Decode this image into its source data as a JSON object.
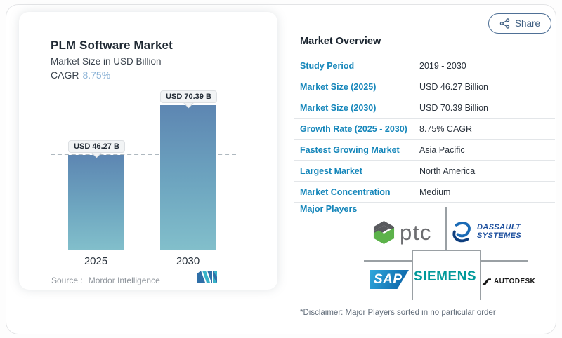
{
  "share": {
    "label": "Share"
  },
  "left_panel": {
    "title": "PLM Software Market",
    "subtitle": "Market Size in USD Billion",
    "cagr_label": "CAGR",
    "cagr_value": "8.75%",
    "source_label": "Source :",
    "source_value": "Mordor Intelligence"
  },
  "chart_data": {
    "type": "bar",
    "title": "PLM Software Market",
    "subtitle": "Market Size in USD Billion",
    "categories": [
      "2025",
      "2030"
    ],
    "values": [
      46.27,
      70.39
    ],
    "bar_labels": [
      "USD 46.27 B",
      "USD 70.39 B"
    ],
    "unit": "USD Billion",
    "cagr": "8.75%",
    "reference_line_at": 46.27,
    "legend": "off",
    "grid": "off",
    "bar_gradient": [
      "#5d86b2",
      "#82bfcb"
    ]
  },
  "overview": {
    "title": "Market Overview",
    "rows": [
      {
        "label": "Study Period",
        "value": "2019 - 2030"
      },
      {
        "label": "Market Size (2025)",
        "value": "USD 46.27 Billion"
      },
      {
        "label": "Market Size (2030)",
        "value": "USD 70.39 Billion"
      },
      {
        "label": "Growth Rate (2025 - 2030)",
        "value": "8.75% CAGR"
      },
      {
        "label": "Fastest Growing Market",
        "value": "Asia Pacific"
      },
      {
        "label": "Largest Market",
        "value": "North America"
      },
      {
        "label": "Market Concentration",
        "value": "Medium"
      }
    ]
  },
  "major_players": {
    "label": "Major Players",
    "players": {
      "ptc": "ptc",
      "dassault_line1": "DASSAULT",
      "dassault_line2": "SYSTEMES",
      "sap": "SAP",
      "siemens": "SIEMENS",
      "autodesk": "AUTODESK"
    },
    "disclaimer": "*Disclaimer: Major Players sorted in no particular order"
  },
  "colors": {
    "accent_blue": "#1586ba",
    "cagr_blue": "#8ab2d6",
    "bar_top": "#5d86b2",
    "bar_bottom": "#82bfcb",
    "siemens_teal": "#00999a",
    "sap_blue": "#0c64a8",
    "dassault_blue": "#1c4f9e",
    "ptc_green": "#5cb24a"
  }
}
